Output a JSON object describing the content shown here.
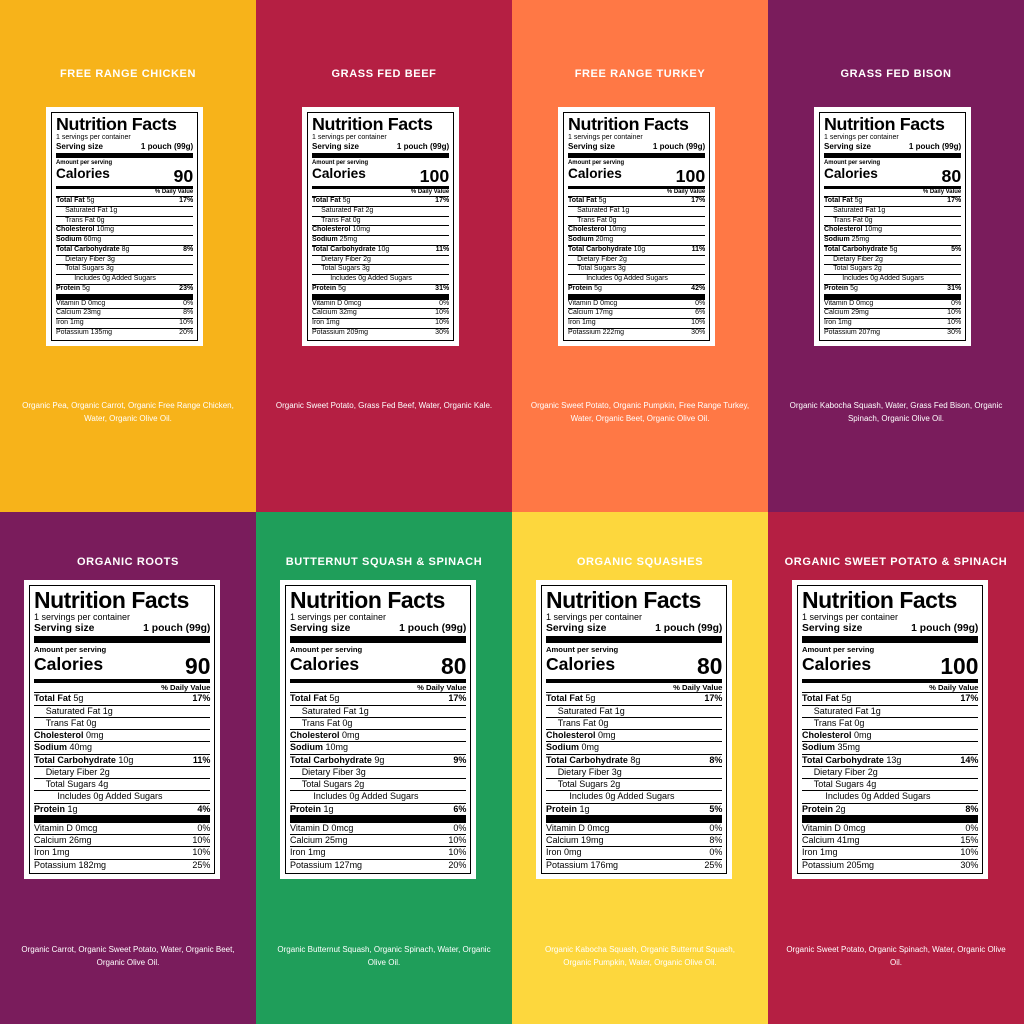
{
  "label_text": {
    "heading": "Nutrition Facts",
    "servings": "1 servings per container",
    "serving_size": "Serving size",
    "serving_amount": "1 pouch (99g)",
    "amount_per_serving": "Amount per serving",
    "calories": "Calories",
    "daily_value": "% Daily Value"
  },
  "panels": [
    {
      "title": "FREE RANGE CHICKEN",
      "calories": "90",
      "rows": [
        {
          "name": "Total Fat",
          "amount": "5g",
          "dv": "17%"
        },
        {
          "name": "Saturated Fat",
          "amount": "1g"
        },
        {
          "name": "Trans Fat",
          "amount": "0g"
        },
        {
          "name": "Cholesterol",
          "amount": "10mg"
        },
        {
          "name": "Sodium",
          "amount": "60mg"
        },
        {
          "name": "Total Carbohydrate",
          "amount": "8g",
          "dv": "8%"
        },
        {
          "name": "Dietary Fiber",
          "amount": "3g"
        },
        {
          "name": "Total Sugars",
          "amount": "3g"
        },
        {
          "name": "Includes 0g Added Sugars"
        },
        {
          "name": "Protein",
          "amount": "5g",
          "dv": "23%"
        },
        {
          "name": "Vitamin D",
          "amount": "0mcg",
          "dv": "0%"
        },
        {
          "name": "Calcium",
          "amount": "23mg",
          "dv": "8%"
        },
        {
          "name": "Iron",
          "amount": "1mg",
          "dv": "10%"
        },
        {
          "name": "Potassium",
          "amount": "135mg",
          "dv": "20%"
        }
      ],
      "ingredients": "Organic Pea, Organic Carrot, Organic Free Range Chicken, Water, Organic Olive Oil."
    },
    {
      "title": "GRASS FED BEEF",
      "calories": "100",
      "rows": [
        {
          "name": "Total Fat",
          "amount": "5g",
          "dv": "17%"
        },
        {
          "name": "Saturated Fat",
          "amount": "2g"
        },
        {
          "name": "Trans Fat",
          "amount": "0g"
        },
        {
          "name": "Cholesterol",
          "amount": "10mg"
        },
        {
          "name": "Sodium",
          "amount": "25mg"
        },
        {
          "name": "Total Carbohydrate",
          "amount": "10g",
          "dv": "11%"
        },
        {
          "name": "Dietary Fiber",
          "amount": "2g"
        },
        {
          "name": "Total Sugars",
          "amount": "3g"
        },
        {
          "name": "Includes 0g Added Sugars"
        },
        {
          "name": "Protein",
          "amount": "5g",
          "dv": "31%"
        },
        {
          "name": "Vitamin D",
          "amount": "0mcg",
          "dv": "0%"
        },
        {
          "name": "Calcium",
          "amount": "32mg",
          "dv": "10%"
        },
        {
          "name": "Iron",
          "amount": "1mg",
          "dv": "10%"
        },
        {
          "name": "Potassium",
          "amount": "209mg",
          "dv": "30%"
        }
      ],
      "ingredients": "Organic Sweet Potato, Grass Fed Beef, Water, Organic Kale."
    },
    {
      "title": "FREE RANGE TURKEY",
      "calories": "100",
      "rows": [
        {
          "name": "Total Fat",
          "amount": "5g",
          "dv": "17%"
        },
        {
          "name": "Saturated Fat",
          "amount": "1g"
        },
        {
          "name": "Trans Fat",
          "amount": "0g"
        },
        {
          "name": "Cholesterol",
          "amount": "10mg"
        },
        {
          "name": "Sodium",
          "amount": "20mg"
        },
        {
          "name": "Total Carbohydrate",
          "amount": "10g",
          "dv": "11%"
        },
        {
          "name": "Dietary Fiber",
          "amount": "2g"
        },
        {
          "name": "Total Sugars",
          "amount": "3g"
        },
        {
          "name": "Includes 0g Added Sugars"
        },
        {
          "name": "Protein",
          "amount": "5g",
          "dv": "42%"
        },
        {
          "name": "Vitamin D",
          "amount": "0mcg",
          "dv": "0%"
        },
        {
          "name": "Calcium",
          "amount": "17mg",
          "dv": "6%"
        },
        {
          "name": "Iron",
          "amount": "1mg",
          "dv": "10%"
        },
        {
          "name": "Potassium",
          "amount": "222mg",
          "dv": "30%"
        }
      ],
      "ingredients": "Organic Sweet Potato, Organic Pumpkin, Free Range Turkey, Water, Organic Beet, Organic Olive Oil."
    },
    {
      "title": "GRASS FED BISON",
      "calories": "80",
      "rows": [
        {
          "name": "Total Fat",
          "amount": "5g",
          "dv": "17%"
        },
        {
          "name": "Saturated Fat",
          "amount": "1g"
        },
        {
          "name": "Trans Fat",
          "amount": "0g"
        },
        {
          "name": "Cholesterol",
          "amount": "10mg"
        },
        {
          "name": "Sodium",
          "amount": "25mg"
        },
        {
          "name": "Total Carbohydrate",
          "amount": "5g",
          "dv": "5%"
        },
        {
          "name": "Dietary Fiber",
          "amount": "2g"
        },
        {
          "name": "Total Sugars",
          "amount": "2g"
        },
        {
          "name": "Includes 0g Added Sugars"
        },
        {
          "name": "Protein",
          "amount": "5g",
          "dv": "31%"
        },
        {
          "name": "Vitamin D",
          "amount": "0mcg",
          "dv": "0%"
        },
        {
          "name": "Calcium",
          "amount": "29mg",
          "dv": "10%"
        },
        {
          "name": "Iron",
          "amount": "1mg",
          "dv": "10%"
        },
        {
          "name": "Potassium",
          "amount": "207mg",
          "dv": "30%"
        }
      ],
      "ingredients": "Organic Kabocha Squash, Water, Grass Fed Bison, Organic Spinach, Organic Olive Oil."
    },
    {
      "title": "ORGANIC ROOTS",
      "calories": "90",
      "rows": [
        {
          "name": "Total Fat",
          "amount": "5g",
          "dv": "17%"
        },
        {
          "name": "Saturated Fat",
          "amount": "1g"
        },
        {
          "name": "Trans Fat",
          "amount": "0g"
        },
        {
          "name": "Cholesterol",
          "amount": "0mg"
        },
        {
          "name": "Sodium",
          "amount": "40mg"
        },
        {
          "name": "Total Carbohydrate",
          "amount": "10g",
          "dv": "11%"
        },
        {
          "name": "Dietary Fiber",
          "amount": "2g"
        },
        {
          "name": "Total Sugars",
          "amount": "4g"
        },
        {
          "name": "Includes 0g Added Sugars"
        },
        {
          "name": "Protein",
          "amount": "1g",
          "dv": "4%"
        },
        {
          "name": "Vitamin D",
          "amount": "0mcg",
          "dv": "0%"
        },
        {
          "name": "Calcium",
          "amount": "26mg",
          "dv": "10%"
        },
        {
          "name": "Iron",
          "amount": "1mg",
          "dv": "10%"
        },
        {
          "name": "Potassium",
          "amount": "182mg",
          "dv": "25%"
        }
      ],
      "ingredients": "Organic Carrot, Organic Sweet Potato, Water, Organic Beet, Organic Olive Oil."
    },
    {
      "title": "BUTTERNUT SQUASH & SPINACH",
      "calories": "80",
      "rows": [
        {
          "name": "Total Fat",
          "amount": "5g",
          "dv": "17%"
        },
        {
          "name": "Saturated Fat",
          "amount": "1g"
        },
        {
          "name": "Trans Fat",
          "amount": "0g"
        },
        {
          "name": "Cholesterol",
          "amount": "0mg"
        },
        {
          "name": "Sodium",
          "amount": "10mg"
        },
        {
          "name": "Total Carbohydrate",
          "amount": "9g",
          "dv": "9%"
        },
        {
          "name": "Dietary Fiber",
          "amount": "3g"
        },
        {
          "name": "Total Sugars",
          "amount": "2g"
        },
        {
          "name": "Includes 0g Added Sugars"
        },
        {
          "name": "Protein",
          "amount": "1g",
          "dv": "6%"
        },
        {
          "name": "Vitamin D",
          "amount": "0mcg",
          "dv": "0%"
        },
        {
          "name": "Calcium",
          "amount": "25mg",
          "dv": "10%"
        },
        {
          "name": "Iron",
          "amount": "1mg",
          "dv": "10%"
        },
        {
          "name": "Potassium",
          "amount": "127mg",
          "dv": "20%"
        }
      ],
      "ingredients": "Organic Butternut Squash, Organic Spinach, Water, Organic Olive Oil."
    },
    {
      "title": "ORGANIC SQUASHES",
      "calories": "80",
      "rows": [
        {
          "name": "Total Fat",
          "amount": "5g",
          "dv": "17%"
        },
        {
          "name": "Saturated Fat",
          "amount": "1g"
        },
        {
          "name": "Trans Fat",
          "amount": "0g"
        },
        {
          "name": "Cholesterol",
          "amount": "0mg"
        },
        {
          "name": "Sodium",
          "amount": "0mg"
        },
        {
          "name": "Total Carbohydrate",
          "amount": "8g",
          "dv": "8%"
        },
        {
          "name": "Dietary Fiber",
          "amount": "3g"
        },
        {
          "name": "Total Sugars",
          "amount": "2g"
        },
        {
          "name": "Includes 0g Added Sugars"
        },
        {
          "name": "Protein",
          "amount": "1g",
          "dv": "5%"
        },
        {
          "name": "Vitamin D",
          "amount": "0mcg",
          "dv": "0%"
        },
        {
          "name": "Calcium",
          "amount": "19mg",
          "dv": "8%"
        },
        {
          "name": "Iron",
          "amount": "0mg",
          "dv": "0%"
        },
        {
          "name": "Potassium",
          "amount": "176mg",
          "dv": "25%"
        }
      ],
      "ingredients": "Organic Kabocha Squash, Organic Butternut Squash, Organic Pumpkin, Water, Organic Olive Oil."
    },
    {
      "title": "ORGANIC SWEET POTATO & SPINACH",
      "calories": "100",
      "rows": [
        {
          "name": "Total Fat",
          "amount": "5g",
          "dv": "17%"
        },
        {
          "name": "Saturated Fat",
          "amount": "1g"
        },
        {
          "name": "Trans Fat",
          "amount": "0g"
        },
        {
          "name": "Cholesterol",
          "amount": "0mg"
        },
        {
          "name": "Sodium",
          "amount": "35mg"
        },
        {
          "name": "Total Carbohydrate",
          "amount": "13g",
          "dv": "14%"
        },
        {
          "name": "Dietary Fiber",
          "amount": "2g"
        },
        {
          "name": "Total Sugars",
          "amount": "4g"
        },
        {
          "name": "Includes 0g Added Sugars"
        },
        {
          "name": "Protein",
          "amount": "2g",
          "dv": "8%"
        },
        {
          "name": "Vitamin D",
          "amount": "0mcg",
          "dv": "0%"
        },
        {
          "name": "Calcium",
          "amount": "41mg",
          "dv": "15%"
        },
        {
          "name": "Iron",
          "amount": "1mg",
          "dv": "10%"
        },
        {
          "name": "Potassium",
          "amount": "205mg",
          "dv": "30%"
        }
      ],
      "ingredients": "Organic Sweet Potato, Organic Spinach, Water, Organic Olive Oil."
    }
  ]
}
